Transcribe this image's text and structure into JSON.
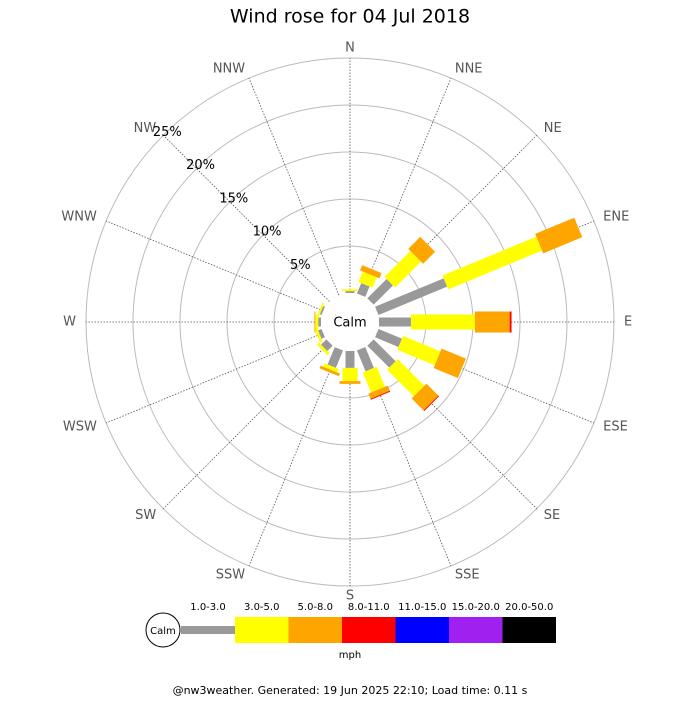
{
  "chart_data": {
    "type": "windrose",
    "title": "Wind rose for 04 Jul 2018",
    "categories": [
      "N",
      "NNE",
      "NE",
      "ENE",
      "E",
      "ESE",
      "SE",
      "SSE",
      "S",
      "SSW",
      "SW",
      "WSW",
      "W",
      "WNW",
      "NW",
      "NNW"
    ],
    "calm_label": "Calm",
    "units_label": "mph",
    "ylim": [
      0,
      25
    ],
    "yticks": [
      {
        "value": 5,
        "label": "5%"
      },
      {
        "value": 10,
        "label": "10%"
      },
      {
        "value": 15,
        "label": "15%"
      },
      {
        "value": 20,
        "label": "20%"
      },
      {
        "value": 25,
        "label": "25%"
      }
    ],
    "grid": true,
    "series": [
      {
        "name": "1.0-3.0",
        "color": "#999999",
        "values": [
          0.2,
          1.2,
          2.9,
          7.9,
          3.4,
          2.7,
          3.3,
          2.4,
          1.8,
          2.0,
          0.8,
          0.4,
          0.3,
          0.2,
          0,
          0
        ]
      },
      {
        "name": "3.0-5.0",
        "color": "#ffff00",
        "values": [
          0.2,
          1.2,
          3.9,
          10.8,
          6.8,
          4.3,
          4.0,
          2.3,
          1.4,
          0.4,
          0.3,
          0.3,
          0.3,
          0.2,
          0,
          0
        ]
      },
      {
        "name": "5.0-8.0",
        "color": "#ffa500",
        "values": [
          0,
          0.6,
          1.8,
          4.5,
          3.7,
          2.8,
          1.8,
          0.6,
          0.3,
          0.3,
          0,
          0,
          0.1,
          0,
          0,
          0
        ]
      },
      {
        "name": "8.0-11.0",
        "color": "#ff0000",
        "values": [
          0,
          0,
          0,
          0,
          0.2,
          0,
          0.1,
          0.1,
          0,
          0,
          0,
          0,
          0,
          0,
          0,
          0
        ]
      },
      {
        "name": "11.0-15.0",
        "color": "#0000ff",
        "values": [
          0,
          0,
          0,
          0,
          0,
          0,
          0,
          0,
          0,
          0,
          0,
          0,
          0,
          0,
          0,
          0
        ]
      },
      {
        "name": "15.0-20.0",
        "color": "#a020f0",
        "values": [
          0,
          0,
          0,
          0,
          0,
          0,
          0,
          0,
          0,
          0,
          0,
          0,
          0,
          0,
          0,
          0
        ]
      },
      {
        "name": "20.0-50.0",
        "color": "#000000",
        "values": [
          0,
          0,
          0,
          0,
          0,
          0,
          0,
          0,
          0,
          0,
          0,
          0,
          0,
          0,
          0,
          0
        ]
      }
    ]
  },
  "footer": "@nw3weather. Generated: 19 Jun 2025 22:10; Load time: 0.11 s"
}
